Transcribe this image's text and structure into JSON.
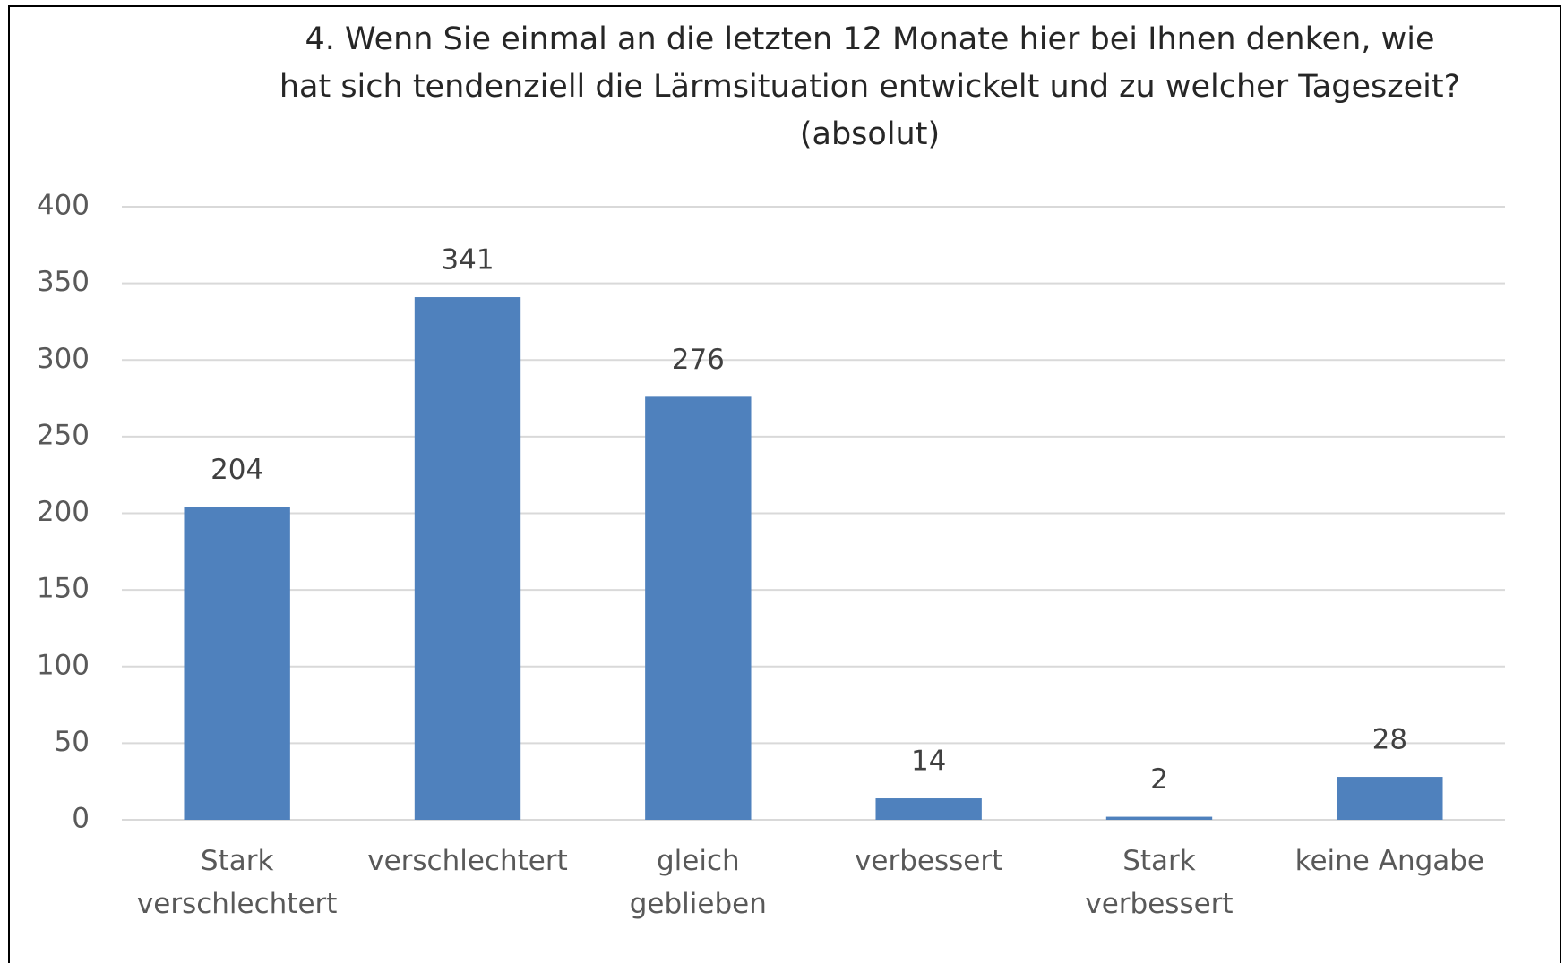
{
  "chart_data": {
    "type": "bar",
    "title": "4. Wenn Sie einmal an die letzten 12 Monate hier bei Ihnen denken, wie\nhat sich tendenziell die Lärmsituation entwickelt und zu welcher Tageszeit?\n(absolut)",
    "categories": [
      "Stark\nverschlechtert",
      "verschlechtert",
      "gleich\ngeblieben",
      "verbessert",
      "Stark\nverbessert",
      "keine Angabe"
    ],
    "values": [
      204,
      341,
      276,
      14,
      2,
      28
    ],
    "color": "#4f81bd",
    "ylim": [
      0,
      400
    ],
    "yticks": [
      0,
      50,
      100,
      150,
      200,
      250,
      300,
      350,
      400
    ],
    "grid": true
  }
}
